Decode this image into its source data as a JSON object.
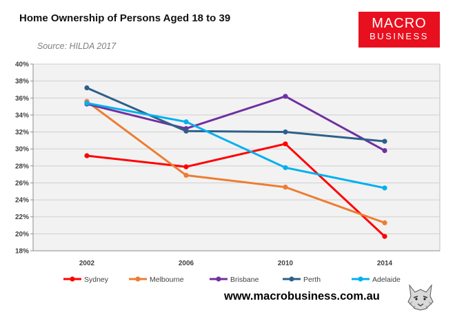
{
  "header": {
    "title": "Home Ownership of Persons Aged 18 to 39",
    "source": "Source: HILDA 2017"
  },
  "logo": {
    "line1": "MACRO",
    "line2": "BUSINESS"
  },
  "footer": {
    "url": "www.macrobusiness.com.au"
  },
  "colors": {
    "Sydney": "#ff0000",
    "Melbourne": "#ed7d31",
    "Brisbane": "#7030a0",
    "Perth": "#2e5f8a",
    "Adelaide": "#00b0f0",
    "plot_bg": "#f2f2f2",
    "logo_bg": "#e8101f"
  },
  "chart_data": {
    "type": "line",
    "title": "Home Ownership of Persons Aged 18 to 39",
    "subtitle": "Source: HILDA 2017",
    "xlabel": "",
    "ylabel": "",
    "categories": [
      "2002",
      "2006",
      "2010",
      "2014"
    ],
    "y_ticks": [
      "18%",
      "20%",
      "22%",
      "24%",
      "26%",
      "28%",
      "30%",
      "32%",
      "34%",
      "36%",
      "38%",
      "40%"
    ],
    "ylim": [
      18,
      40
    ],
    "grid": "horizontal",
    "legend_position": "bottom",
    "series": [
      {
        "name": "Sydney",
        "values": [
          29.2,
          27.9,
          30.6,
          19.7
        ]
      },
      {
        "name": "Melbourne",
        "values": [
          35.6,
          26.9,
          25.5,
          21.3
        ]
      },
      {
        "name": "Brisbane",
        "values": [
          35.3,
          32.4,
          36.2,
          29.8
        ]
      },
      {
        "name": "Perth",
        "values": [
          37.2,
          32.1,
          32.0,
          30.9
        ]
      },
      {
        "name": "Adelaide",
        "values": [
          35.4,
          33.2,
          27.8,
          25.4
        ]
      }
    ]
  }
}
